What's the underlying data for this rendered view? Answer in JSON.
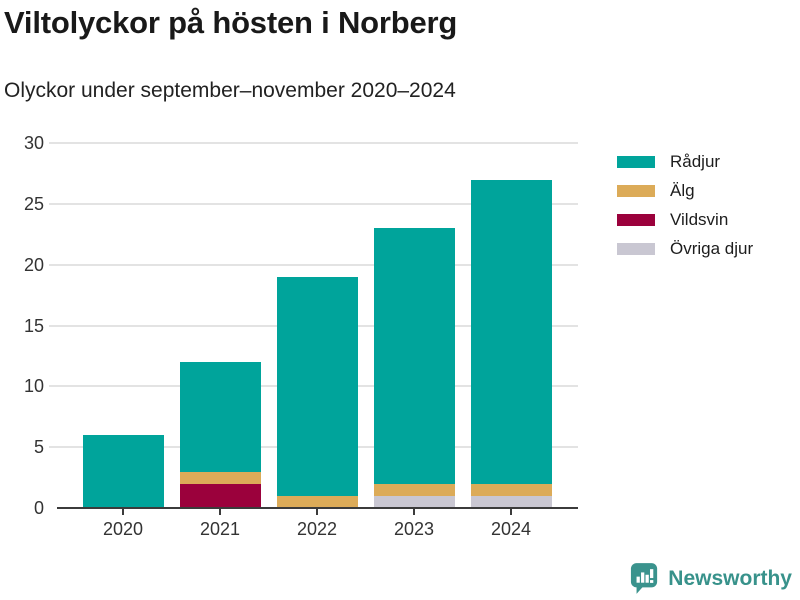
{
  "chart_data": {
    "type": "bar",
    "stacked": true,
    "title": "Viltolyckor på hösten i Norberg",
    "subtitle": "Olyckor under september–november 2020–2024",
    "categories": [
      "2020",
      "2021",
      "2022",
      "2023",
      "2024"
    ],
    "series": [
      {
        "name": "Rådjur",
        "color": "#00A49B",
        "values": [
          6,
          9,
          18,
          21,
          25
        ]
      },
      {
        "name": "Älg",
        "color": "#DCAB58",
        "values": [
          0,
          1,
          1,
          1,
          1
        ]
      },
      {
        "name": "Vildsvin",
        "color": "#9B013C",
        "values": [
          0,
          2,
          0,
          0,
          0
        ]
      },
      {
        "name": "Övriga djur",
        "color": "#C9C7D2",
        "values": [
          0,
          0,
          0,
          1,
          1
        ]
      }
    ],
    "totals": [
      6,
      12,
      19,
      23,
      27
    ],
    "stack_order_bottom_to_top": [
      "Övriga djur",
      "Vildsvin",
      "Älg",
      "Rådjur"
    ],
    "ylim": [
      0,
      30
    ],
    "yticks": [
      0,
      5,
      10,
      15,
      20,
      25,
      30
    ],
    "grid": true,
    "legend_position": "right",
    "colors": {
      "axis": "#3B3B3B",
      "gridline": "#E3E3E3",
      "tick_label": "#333333"
    }
  },
  "footer": {
    "brand": "Newsworthy",
    "brand_color": "#38928B",
    "icon": "bar-chart-speech-bubble"
  }
}
